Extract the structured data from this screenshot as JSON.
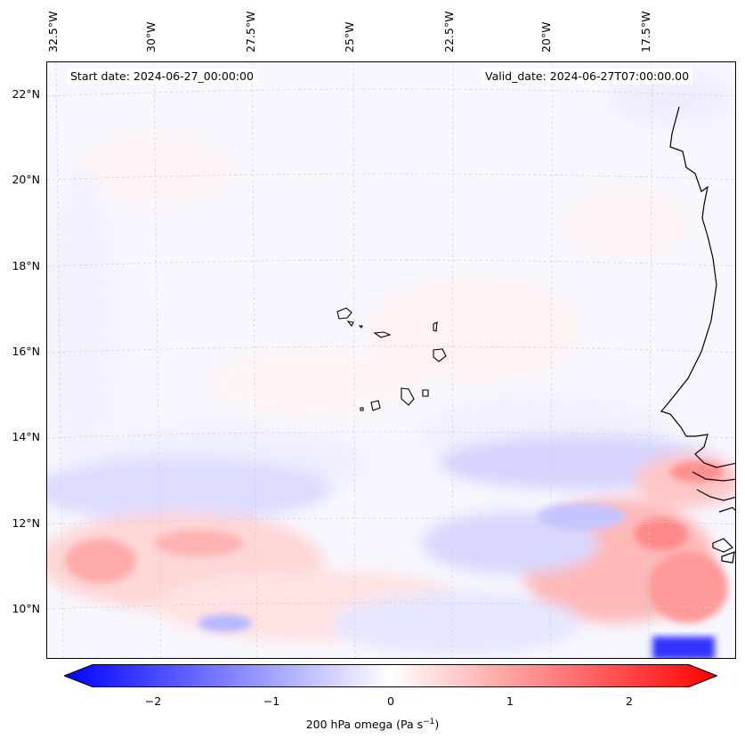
{
  "start_date": "Start date: 2024-06-27_00:00:00",
  "valid_date": "Valid_date: 2024-06-27T07:00:00.00",
  "lon_labels": [
    "32.5°W",
    "30°W",
    "27.5°W",
    "25°W",
    "22.5°W",
    "20°W",
    "17.5°W"
  ],
  "lat_labels": [
    "22°N",
    "20°N",
    "18°N",
    "16°N",
    "14°N",
    "12°N",
    "10°N"
  ],
  "colorbar": {
    "ticks": [
      "−2",
      "−1",
      "0",
      "1",
      "2"
    ],
    "min": -2.75,
    "max": 2.75,
    "label": "200 hPa omega (Pa s",
    "label_sup": "−1",
    "label_end": ")",
    "colors": {
      "negative": "#0000ff",
      "zero": "#ffffff",
      "positive": "#ff0000"
    }
  },
  "map": {
    "projection": "lambert-conformal",
    "extent_lon": [
      -32.7,
      -15.1
    ],
    "extent_lat": [
      8.8,
      22.7
    ],
    "gridlines": "dashed light gray",
    "features": [
      "Cape Verde islands",
      "West Africa coastline"
    ]
  }
}
